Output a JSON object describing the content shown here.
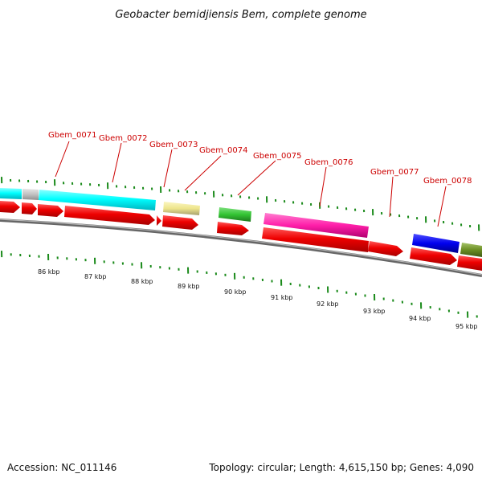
{
  "header": {
    "title": "Geobacter bemidjiensis Bem, complete genome"
  },
  "footer": {
    "accession": "Accession: NC_011146",
    "summary": "Topology: circular; Length: 4,615,150 bp; Genes: 4,090"
  },
  "gene_labels": [
    "Gbem_0071",
    "Gbem_0072",
    "Gbem_0073",
    "Gbem_0074",
    "Gbem_0075",
    "Gbem_0076",
    "Gbem_0077",
    "Gbem_0078"
  ],
  "kbp_labels": [
    "86 kbp",
    "87 kbp",
    "88 kbp",
    "89 kbp",
    "90 kbp",
    "91 kbp",
    "92 kbp",
    "93 kbp",
    "94 kbp",
    "95 kbp"
  ],
  "colors": {
    "gene_label": "#cc0000",
    "tick": "#1a8a1a",
    "cds": "#ee0000",
    "cyan": "#00ffff",
    "grey": "#c0c0c0",
    "khaki": "#eee58c",
    "green": "#33c433",
    "magenta": "#ff1fa9",
    "blue": "#0000ee",
    "olive": "#6b8e23",
    "backbone": "#888888"
  }
}
